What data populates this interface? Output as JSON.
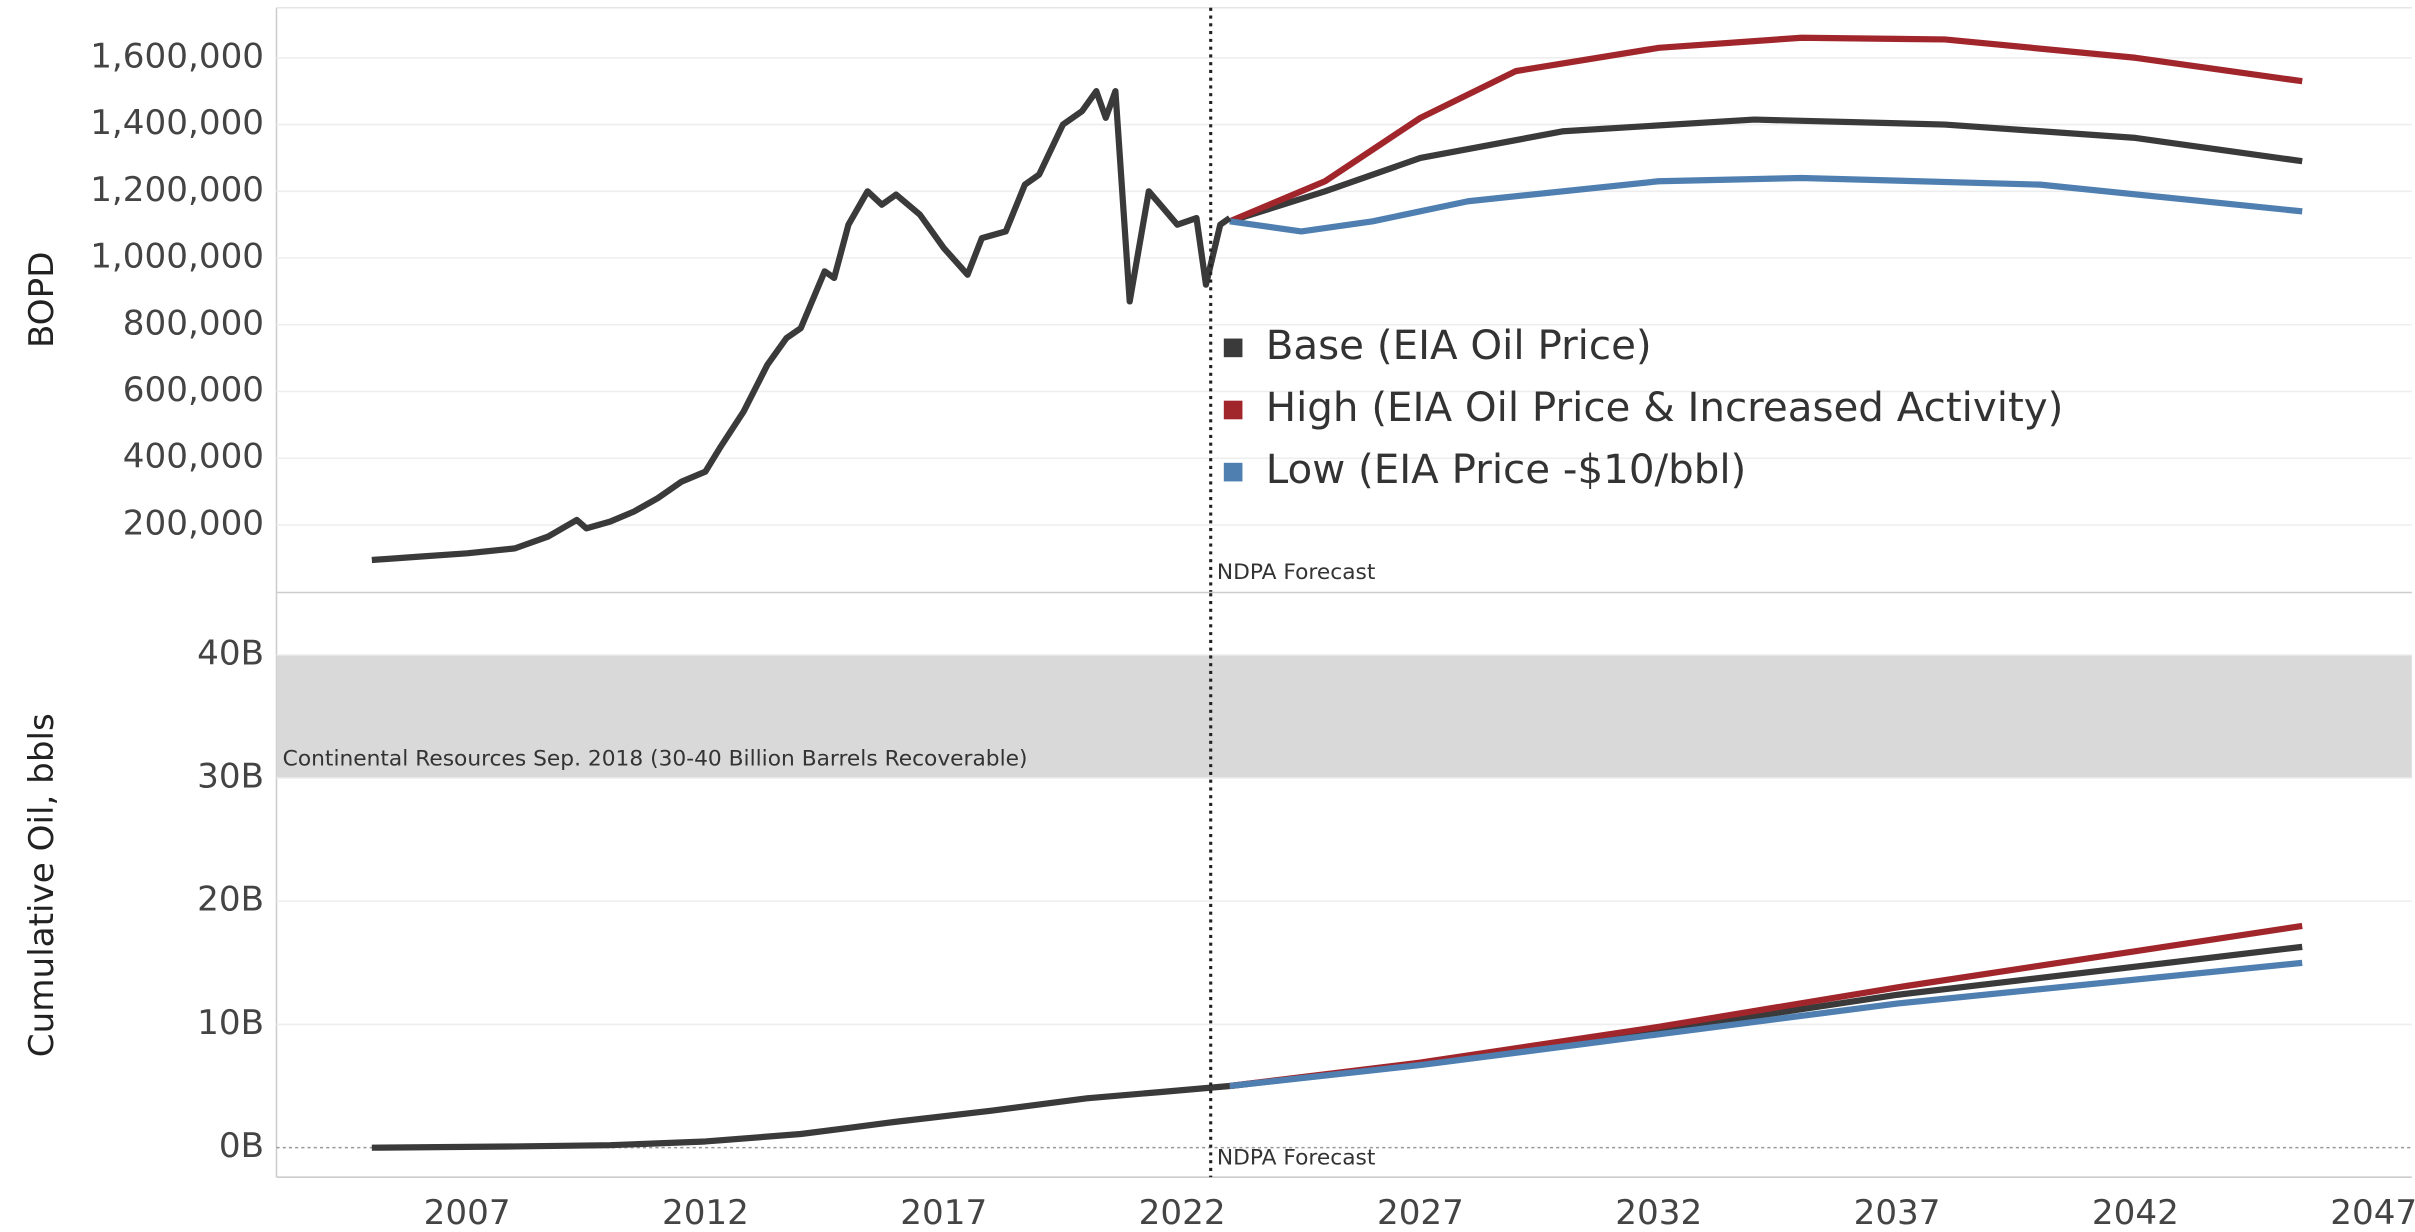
{
  "chart_data": [
    {
      "type": "line",
      "y_label": "BOPD",
      "ylim": [
        0,
        1750000
      ],
      "yticks": [
        {
          "value": 200000,
          "label": "200,000"
        },
        {
          "value": 400000,
          "label": "400,000"
        },
        {
          "value": 600000,
          "label": "600,000"
        },
        {
          "value": 800000,
          "label": "800,000"
        },
        {
          "value": 1000000,
          "label": "1,000,000"
        },
        {
          "value": 1200000,
          "label": "1,200,000"
        },
        {
          "value": 1400000,
          "label": "1,400,000"
        },
        {
          "value": 1600000,
          "label": "1,600,000"
        }
      ],
      "xlim": [
        2003,
        2047.8
      ],
      "grid": true,
      "forecast_x": 2022.6,
      "forecast_label": "NDPA Forecast",
      "history": {
        "color": "#3a3a3a",
        "x": [
          2005.0,
          2006.0,
          2007.0,
          2008.0,
          2008.7,
          2009.3,
          2009.5,
          2010.0,
          2010.5,
          2011.0,
          2011.5,
          2012.0,
          2012.3,
          2012.8,
          2013.3,
          2013.7,
          2014.0,
          2014.5,
          2014.7,
          2015.0,
          2015.4,
          2015.7,
          2016.0,
          2016.5,
          2017.0,
          2017.5,
          2017.8,
          2018.3,
          2018.7,
          2019.0,
          2019.5,
          2019.9,
          2020.2,
          2020.4,
          2020.6,
          2020.9,
          2021.3,
          2021.6,
          2021.9,
          2022.3,
          2022.5,
          2022.8,
          2023.0
        ],
        "values": [
          95000,
          105000,
          115000,
          130000,
          165000,
          215000,
          190000,
          210000,
          240000,
          280000,
          330000,
          360000,
          430000,
          540000,
          680000,
          760000,
          790000,
          960000,
          940000,
          1100000,
          1200000,
          1160000,
          1190000,
          1130000,
          1030000,
          950000,
          1060000,
          1080000,
          1220000,
          1250000,
          1400000,
          1440000,
          1500000,
          1420000,
          1500000,
          870000,
          1200000,
          1150000,
          1100000,
          1120000,
          920000,
          1100000,
          1120000
        ]
      },
      "series": [
        {
          "name": "Base (EIA Oil Price)",
          "color": "#3a3a3a",
          "x": [
            2023,
            2025,
            2027,
            2030,
            2034,
            2038,
            2042,
            2045.5
          ],
          "values": [
            1110000,
            1200000,
            1300000,
            1380000,
            1415000,
            1400000,
            1360000,
            1290000
          ]
        },
        {
          "name": "High (EIA Oil Price & Increased Activity)",
          "color": "#a0262c",
          "x": [
            2023,
            2025,
            2027,
            2029,
            2032,
            2035,
            2038,
            2042,
            2045.5
          ],
          "values": [
            1110000,
            1230000,
            1420000,
            1560000,
            1630000,
            1660000,
            1655000,
            1600000,
            1530000
          ]
        },
        {
          "name": "Low (EIA Price -$10/bbl)",
          "color": "#4f7fb0",
          "x": [
            2023,
            2024.5,
            2026,
            2028,
            2032,
            2035,
            2040,
            2045.5
          ],
          "values": [
            1110000,
            1080000,
            1110000,
            1170000,
            1230000,
            1240000,
            1220000,
            1140000
          ]
        }
      ]
    },
    {
      "type": "line",
      "y_label": "Cumulative Oil, bbls",
      "ylim": [
        -2.4,
        45
      ],
      "yticks": [
        {
          "value": 0,
          "label": "0B"
        },
        {
          "value": 10,
          "label": "10B"
        },
        {
          "value": 20,
          "label": "20B"
        },
        {
          "value": 30,
          "label": "30B"
        },
        {
          "value": 40,
          "label": "40B"
        }
      ],
      "xlim": [
        2003,
        2047.8
      ],
      "xticks": [
        2007,
        2012,
        2017,
        2022,
        2027,
        2032,
        2037,
        2042,
        2047
      ],
      "grid": true,
      "forecast_x": 2022.6,
      "forecast_label": "NDPA Forecast",
      "band": {
        "range": [
          30,
          40
        ],
        "label": "Continental Resources Sep. 2018 (30-40 Billion Barrels Recoverable)",
        "color": "#d9d9d9"
      },
      "history": {
        "color": "#3a3a3a",
        "x": [
          2005,
          2008,
          2010,
          2012,
          2014,
          2015,
          2016,
          2018,
          2020,
          2021.5,
          2023
        ],
        "values": [
          0,
          0.1,
          0.2,
          0.5,
          1.1,
          1.6,
          2.1,
          3.0,
          4.0,
          4.5,
          5.0
        ]
      },
      "series": [
        {
          "color": "#3a3a3a",
          "x": [
            2023,
            2027,
            2032,
            2037,
            2045.5
          ],
          "values": [
            5.0,
            6.8,
            9.5,
            12.4,
            16.3
          ]
        },
        {
          "color": "#a0262c",
          "x": [
            2023,
            2027,
            2032,
            2037,
            2045.5
          ],
          "values": [
            5.0,
            6.9,
            9.8,
            13.0,
            18.0
          ]
        },
        {
          "color": "#4f7fb0",
          "x": [
            2023,
            2027,
            2032,
            2037,
            2045.5
          ],
          "values": [
            5.0,
            6.7,
            9.2,
            11.7,
            15.0
          ]
        }
      ]
    }
  ]
}
